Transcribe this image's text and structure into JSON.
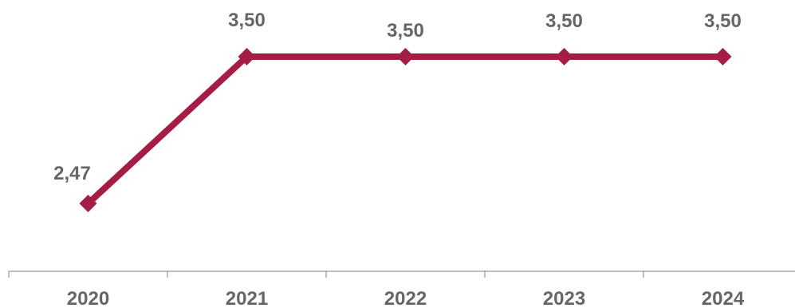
{
  "chart_data": {
    "type": "line",
    "categories": [
      "2020",
      "2021",
      "2022",
      "2023",
      "2024"
    ],
    "series": [
      {
        "values": [
          2.47,
          3.5,
          3.5,
          3.5,
          3.5
        ],
        "data_labels": [
          "2,47",
          "3,50",
          "3,50",
          "3,50",
          "3,50"
        ]
      }
    ],
    "title": "",
    "xlabel": "",
    "ylabel": "",
    "grid": false,
    "legend": "none",
    "colors": {
      "line": "#a51c45",
      "axis": "#808080",
      "text": "#666666"
    }
  }
}
